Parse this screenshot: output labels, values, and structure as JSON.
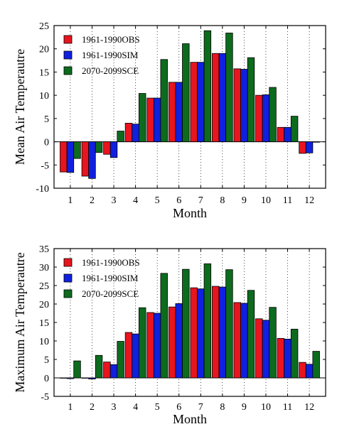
{
  "colors": {
    "obs": "#e8141e",
    "sim": "#1020e0",
    "sce": "#0d6b1e",
    "axis": "#000000",
    "grid": "#000000"
  },
  "chart_data": [
    {
      "type": "bar",
      "ylabel": "Mean Air Temperautre",
      "xlabel": "Month",
      "categories": [
        "1",
        "2",
        "3",
        "4",
        "5",
        "6",
        "7",
        "8",
        "9",
        "10",
        "11",
        "12"
      ],
      "ylim": [
        -10,
        25
      ],
      "yticks": [
        "25",
        "20",
        "15",
        "10",
        "5",
        "0",
        "-5",
        "-10"
      ],
      "ytick_values": [
        25,
        20,
        15,
        10,
        5,
        0,
        -5,
        -10
      ],
      "grid": "dotted-vertical",
      "legend_position": "top-left",
      "series": [
        {
          "name": "1961-1990OBS",
          "color_key": "obs",
          "values": [
            -6.5,
            -7.4,
            -2.7,
            4.0,
            9.4,
            12.8,
            17.1,
            19.0,
            15.7,
            10.0,
            3.1,
            -2.5
          ]
        },
        {
          "name": "1961-1990SIM",
          "color_key": "sim",
          "values": [
            -6.6,
            -7.9,
            -3.4,
            3.8,
            9.4,
            12.8,
            17.1,
            19.0,
            15.6,
            10.1,
            3.1,
            -2.4
          ]
        },
        {
          "name": "2070-2099SCE",
          "color_key": "sce",
          "values": [
            -3.6,
            -2.3,
            2.3,
            10.4,
            17.7,
            21.1,
            23.9,
            23.4,
            18.1,
            11.7,
            5.5,
            -0.1
          ]
        }
      ]
    },
    {
      "type": "bar",
      "ylabel": "Maximum Air Temperautre",
      "xlabel": "Month",
      "categories": [
        "1",
        "2",
        "3",
        "4",
        "5",
        "6",
        "7",
        "8",
        "9",
        "10",
        "11",
        "12"
      ],
      "ylim": [
        -5,
        35
      ],
      "yticks": [
        "35",
        "30",
        "25",
        "20",
        "15",
        "10",
        "5",
        "0",
        "-5"
      ],
      "ytick_values": [
        35,
        30,
        25,
        20,
        15,
        10,
        5,
        0,
        -5
      ],
      "grid": "dotted-vertical",
      "legend_position": "top-left",
      "series": [
        {
          "name": "1961-1990OBS",
          "color_key": "obs",
          "values": [
            0.0,
            -0.1,
            4.3,
            12.3,
            17.7,
            19.2,
            24.4,
            24.8,
            20.4,
            16.0,
            10.7,
            4.2
          ]
        },
        {
          "name": "1961-1990SIM",
          "color_key": "sim",
          "values": [
            -0.2,
            -0.3,
            3.6,
            11.9,
            17.5,
            20.1,
            24.1,
            24.6,
            20.2,
            15.6,
            10.5,
            3.7
          ]
        },
        {
          "name": "2070-2099SCE",
          "color_key": "sce",
          "values": [
            4.6,
            6.1,
            9.9,
            19.0,
            28.3,
            29.4,
            30.9,
            29.3,
            23.7,
            19.1,
            13.2,
            7.2
          ]
        }
      ]
    }
  ]
}
